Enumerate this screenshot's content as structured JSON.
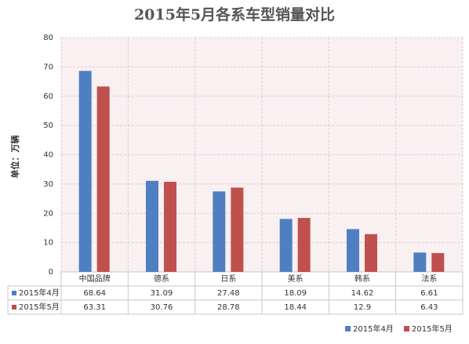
{
  "chart_data": {
    "type": "bar",
    "title": "2015年5月各系车型销量对比",
    "y_label": "单位：万辆",
    "categories": [
      "中国品牌",
      "德系",
      "日系",
      "美系",
      "韩系",
      "法系"
    ],
    "series": [
      {
        "name": "2015年4月",
        "color": "#4f7fc0",
        "values": [
          68.64,
          31.09,
          27.48,
          18.09,
          14.62,
          6.61
        ]
      },
      {
        "name": "2015年5月",
        "color": "#c0504d",
        "values": [
          63.31,
          30.76,
          28.78,
          18.44,
          12.9,
          6.43
        ]
      }
    ],
    "ylim": [
      0,
      80
    ],
    "yticks": [
      0,
      10,
      20,
      30,
      40,
      50,
      60,
      70,
      80
    ],
    "grid": true
  }
}
